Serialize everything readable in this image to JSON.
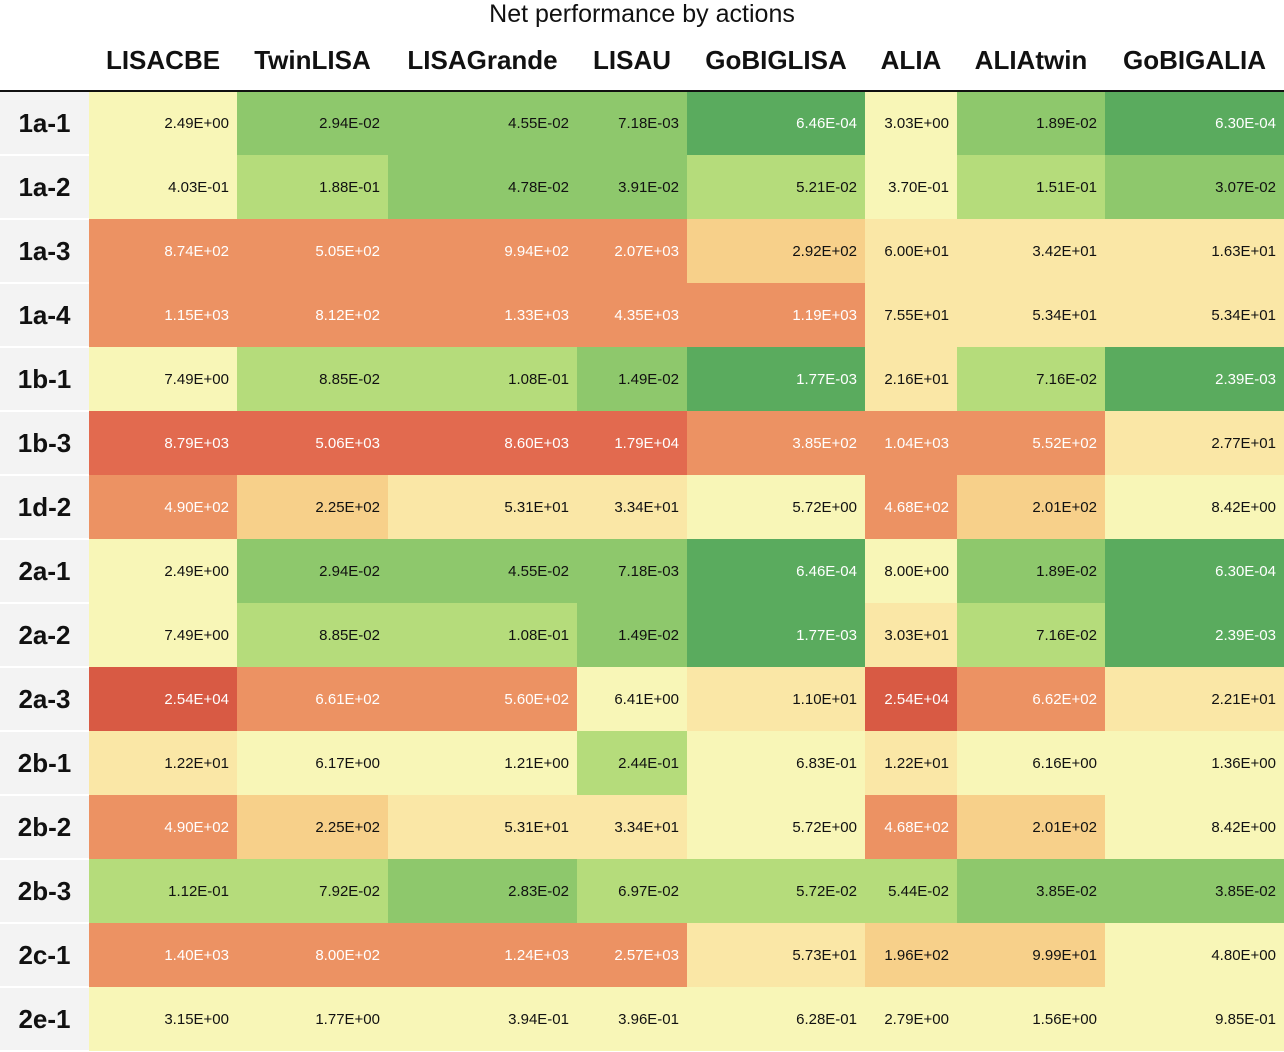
{
  "chart_data": {
    "type": "heatmap",
    "title": "Net performance by actions",
    "columns": [
      "LISACBE",
      "TwinLISA",
      "LISAGrande",
      "LISAU",
      "GoBIGLISA",
      "ALIA",
      "ALIAtwin",
      "GoBIGALIA"
    ],
    "rows": [
      "1a-1",
      "1a-2",
      "1a-3",
      "1a-4",
      "1b-1",
      "1b-3",
      "1d-2",
      "2a-1",
      "2a-2",
      "2a-3",
      "2b-1",
      "2b-2",
      "2b-3",
      "2c-1",
      "2e-1"
    ],
    "values": [
      [
        "2.49E+00",
        "2.94E-02",
        "4.55E-02",
        "7.18E-03",
        "6.46E-04",
        "3.03E+00",
        "1.89E-02",
        "6.30E-04"
      ],
      [
        "4.03E-01",
        "1.88E-01",
        "4.78E-02",
        "3.91E-02",
        "5.21E-02",
        "3.70E-01",
        "1.51E-01",
        "3.07E-02"
      ],
      [
        "8.74E+02",
        "5.05E+02",
        "9.94E+02",
        "2.07E+03",
        "2.92E+02",
        "6.00E+01",
        "3.42E+01",
        "1.63E+01"
      ],
      [
        "1.15E+03",
        "8.12E+02",
        "1.33E+03",
        "4.35E+03",
        "1.19E+03",
        "7.55E+01",
        "5.34E+01",
        "5.34E+01"
      ],
      [
        "7.49E+00",
        "8.85E-02",
        "1.08E-01",
        "1.49E-02",
        "1.77E-03",
        "2.16E+01",
        "7.16E-02",
        "2.39E-03"
      ],
      [
        "8.79E+03",
        "5.06E+03",
        "8.60E+03",
        "1.79E+04",
        "3.85E+02",
        "1.04E+03",
        "5.52E+02",
        "2.77E+01"
      ],
      [
        "4.90E+02",
        "2.25E+02",
        "5.31E+01",
        "3.34E+01",
        "5.72E+00",
        "4.68E+02",
        "2.01E+02",
        "8.42E+00"
      ],
      [
        "2.49E+00",
        "2.94E-02",
        "4.55E-02",
        "7.18E-03",
        "6.46E-04",
        "8.00E+00",
        "1.89E-02",
        "6.30E-04"
      ],
      [
        "7.49E+00",
        "8.85E-02",
        "1.08E-01",
        "1.49E-02",
        "1.77E-03",
        "3.03E+01",
        "7.16E-02",
        "2.39E-03"
      ],
      [
        "2.54E+04",
        "6.61E+02",
        "5.60E+02",
        "6.41E+00",
        "1.10E+01",
        "2.54E+04",
        "6.62E+02",
        "2.21E+01"
      ],
      [
        "1.22E+01",
        "6.17E+00",
        "1.21E+00",
        "2.44E-01",
        "6.83E-01",
        "1.22E+01",
        "6.16E+00",
        "1.36E+00"
      ],
      [
        "4.90E+02",
        "2.25E+02",
        "5.31E+01",
        "3.34E+01",
        "5.72E+00",
        "4.68E+02",
        "2.01E+02",
        "8.42E+00"
      ],
      [
        "1.12E-01",
        "7.92E-02",
        "2.83E-02",
        "6.97E-02",
        "5.72E-02",
        "5.44E-02",
        "3.85E-02",
        "3.85E-02"
      ],
      [
        "1.40E+03",
        "8.00E+02",
        "1.24E+03",
        "2.57E+03",
        "5.73E+01",
        "1.96E+02",
        "9.99E+01",
        "4.80E+00"
      ],
      [
        "3.15E+00",
        "1.77E+00",
        "3.94E-01",
        "3.96E-01",
        "6.28E-01",
        "2.79E+00",
        "1.56E+00",
        "9.85E-01"
      ]
    ],
    "color_scale": {
      "palette": [
        "#2d6a3e",
        "#3e8f50",
        "#5aab5e",
        "#8ec86c",
        "#b5dc7b",
        "#f8f6b7",
        "#fae7a6",
        "#f7d08a",
        "#ec9263",
        "#e26a4f",
        "#d85a44",
        "#92192a"
      ],
      "thresholds": [
        0.2,
        0.5,
        1.5,
        2.7,
        3.5,
        5.0,
        5.9,
        6.5,
        7.7,
        8.3,
        9.0
      ],
      "dark_text_levels": [
        3,
        4,
        5,
        6,
        7
      ]
    }
  }
}
